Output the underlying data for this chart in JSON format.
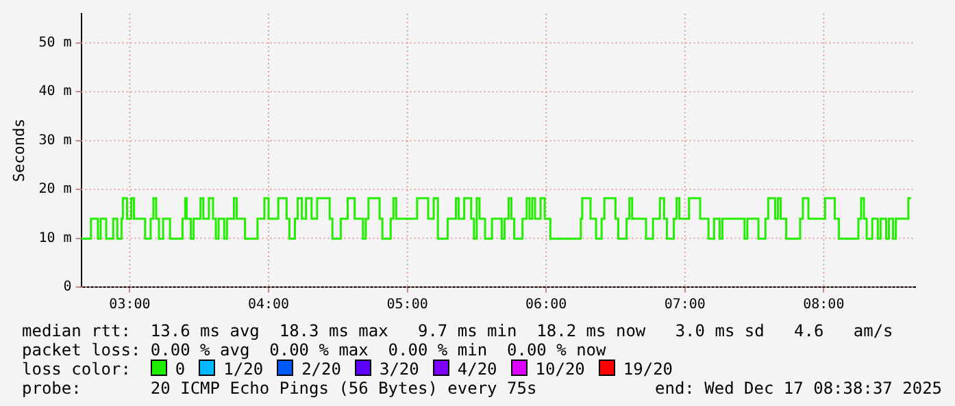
{
  "chart_data": {
    "type": "step",
    "ylabel": "Seconds",
    "xlim": [
      2.65,
      8.66
    ],
    "xticks": [
      {
        "value": 3,
        "label": "03:00"
      },
      {
        "value": 4,
        "label": "04:00"
      },
      {
        "value": 5,
        "label": "05:00"
      },
      {
        "value": 6,
        "label": "06:00"
      },
      {
        "value": 7,
        "label": "07:00"
      },
      {
        "value": 8,
        "label": "08:00"
      }
    ],
    "ylim": [
      0,
      56
    ],
    "yticks": [
      0,
      {
        "value": 10,
        "label": "10 m"
      },
      {
        "value": 20,
        "label": "20 m"
      },
      {
        "value": 30,
        "label": "30 m"
      },
      {
        "value": 40,
        "label": "40 m"
      },
      {
        "value": 50,
        "label": "50 m"
      }
    ],
    "grid": true,
    "legend": "bottom",
    "legend_title": "loss color:",
    "series": [
      {
        "name": "0",
        "color": "#22ee00",
        "x": [
          2.65,
          2.72,
          2.77,
          2.79,
          2.83,
          2.88,
          2.91,
          2.94,
          2.95,
          2.98,
          3.01,
          3.03,
          3.11,
          3.15,
          3.17,
          3.19,
          3.21,
          3.24,
          3.29,
          3.38,
          3.4,
          3.41,
          3.44,
          3.46,
          3.51,
          3.53,
          3.57,
          3.6,
          3.62,
          3.64,
          3.68,
          3.7,
          3.75,
          3.77,
          3.83,
          3.92,
          3.97,
          4.0,
          4.07,
          4.13,
          4.15,
          4.19,
          4.21,
          4.24,
          4.27,
          4.31,
          4.35,
          4.44,
          4.46,
          4.52,
          4.57,
          4.62,
          4.68,
          4.7,
          4.72,
          4.8,
          4.82,
          4.88,
          4.9,
          4.92,
          5.07,
          5.15,
          5.19,
          5.22,
          5.29,
          5.35,
          5.37,
          5.41,
          5.46,
          5.48,
          5.5,
          5.52,
          5.56,
          5.61,
          5.68,
          5.7,
          5.73,
          5.75,
          5.77,
          5.83,
          5.86,
          5.88,
          5.9,
          5.92,
          5.96,
          5.99,
          6.03,
          6.25,
          6.26,
          6.32,
          6.36,
          6.4,
          6.42,
          6.5,
          6.52,
          6.58,
          6.6,
          6.62,
          6.72,
          6.77,
          6.82,
          6.85,
          6.87,
          6.92,
          6.94,
          6.96,
          7.03,
          7.11,
          7.17,
          7.21,
          7.25,
          7.27,
          7.43,
          7.45,
          7.53,
          7.58,
          7.6,
          7.65,
          7.67,
          7.69,
          7.73,
          7.83,
          7.85,
          7.89,
          8.01,
          8.08,
          8.11,
          8.25,
          8.27,
          8.29,
          8.31,
          8.35,
          8.39,
          8.41,
          8.45,
          8.47,
          8.5,
          8.52,
          8.61,
          8.63
        ],
        "values": [
          9.9,
          14,
          9.9,
          14,
          9.9,
          14,
          9.9,
          14,
          18.2,
          14,
          18.2,
          14,
          9.9,
          14,
          18.2,
          14,
          9.9,
          14,
          9.9,
          14,
          18.2,
          14,
          9.9,
          14,
          18.2,
          14,
          18.2,
          14,
          9.9,
          14,
          9.9,
          14,
          18.2,
          14,
          9.9,
          14,
          18.2,
          14,
          18.2,
          14,
          9.9,
          14,
          18.2,
          14,
          18.2,
          14,
          18.2,
          14,
          9.9,
          14,
          18.2,
          14,
          9.9,
          14,
          18.2,
          14,
          9.9,
          14,
          18.2,
          14,
          18.2,
          14,
          18.2,
          9.9,
          14,
          18.2,
          14,
          18.2,
          14,
          9.9,
          18.2,
          14,
          9.9,
          14,
          9.9,
          14,
          18.2,
          14,
          9.9,
          14,
          18.2,
          14,
          18.2,
          14,
          18.2,
          14,
          9.9,
          14,
          18.2,
          14,
          9.9,
          14,
          18.2,
          14,
          9.9,
          14,
          18.2,
          14,
          9.9,
          14,
          18.2,
          14,
          9.9,
          14,
          18.2,
          14,
          18.2,
          14,
          9.9,
          14,
          9.9,
          14,
          9.9,
          14,
          9.9,
          14,
          18.2,
          14,
          18.2,
          14,
          9.9,
          14,
          18.2,
          14,
          18.2,
          14,
          9.9,
          14,
          18.2,
          14,
          9.9,
          14,
          9.9,
          14,
          9.9,
          14,
          9.9,
          14,
          18.2,
          18.2
        ]
      },
      {
        "name": "1/20",
        "color": "#00b8ff"
      },
      {
        "name": "2/20",
        "color": "#0059ff"
      },
      {
        "name": "3/20",
        "color": "#5e00ff"
      },
      {
        "name": "4/20",
        "color": "#7e00ff"
      },
      {
        "name": "10/20",
        "color": "#dd00ff"
      },
      {
        "name": "19/20",
        "color": "#ff0000"
      }
    ],
    "annotations": [
      "median rtt:  13.6 ms avg  18.3 ms max   9.7 ms min  18.2 ms now   3.0 ms sd   4.6   am/s",
      "packet loss: 0.00 % avg  0.00 % max  0.00 % min  0.00 % now",
      "probe:       20 ICMP Echo Pings (56 Bytes) every 75s",
      "end: Wed Dec 17 08:38:37 2025"
    ]
  }
}
